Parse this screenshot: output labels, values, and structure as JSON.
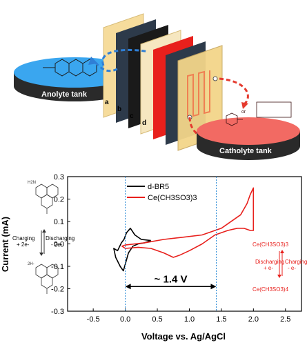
{
  "schematic": {
    "anolyte_tank": "Anolyte tank",
    "catholyte_tank": "Catholyte tank",
    "layer_letters": [
      "a",
      "b",
      "c",
      "d"
    ],
    "or_label": "or",
    "colors": {
      "anolyte": "#3aa6ef",
      "catholyte": "#f26a63",
      "flow_blue": "#2f7fd6",
      "flow_red": "#e53a2e",
      "plate": "#f6dc9c"
    }
  },
  "molecule_labels": {
    "top_nh2": "H2N",
    "bottom_nh2": "2H-",
    "charging": "Charging",
    "charging_e": "+ 2e-",
    "discharging": "Discharging",
    "discharging_e": "- 2e-",
    "ce_top": "Ce(CH3SO3)3",
    "ce_bottom": "Ce(CH3SO3)4",
    "ce_discharging": "Discharging",
    "ce_discharging_e": "+ e-",
    "ce_charging": "Charging",
    "ce_charging_e": "- e-"
  },
  "chart_data": {
    "type": "line",
    "xlabel": "Voltage vs. Ag/AgCl",
    "ylabel": "Current (mA)",
    "xlim": [
      -0.9,
      2.75
    ],
    "ylim": [
      -0.3,
      0.3
    ],
    "xticks": [
      -0.5,
      0.0,
      0.5,
      1.0,
      1.5,
      2.0,
      2.5
    ],
    "yticks": [
      -0.3,
      -0.2,
      -0.1,
      0.0,
      0.1,
      0.2,
      0.3
    ],
    "annotation": "~ 1.4 V",
    "markers": [
      0.0,
      1.42
    ],
    "legend_position": "top-center",
    "series": [
      {
        "name": "d-BR5",
        "color": "#000000",
        "x": [
          0.4,
          0.25,
          0.15,
          0.08,
          0.02,
          -0.02,
          -0.06,
          -0.12,
          -0.18,
          -0.15,
          -0.08,
          -0.03,
          0.0,
          0.05,
          0.12,
          0.2,
          0.3,
          0.4
        ],
        "y": [
          0.015,
          0.02,
          0.04,
          0.07,
          0.05,
          0.02,
          0.005,
          -0.03,
          -0.02,
          -0.06,
          -0.1,
          -0.12,
          -0.09,
          -0.04,
          -0.01,
          0.0,
          0.005,
          0.015
        ]
      },
      {
        "name": "Ce(CH3SO3)3",
        "color": "#e8201c",
        "x": [
          0.0,
          0.3,
          0.6,
          0.9,
          1.2,
          1.5,
          1.8,
          1.9,
          1.95,
          2.0,
          2.0,
          1.95,
          1.85,
          1.75,
          1.6,
          1.4,
          1.2,
          1.0,
          0.85,
          0.75,
          0.6,
          0.4,
          0.2,
          0.0,
          -0.05,
          0.0
        ],
        "y": [
          -0.005,
          0.005,
          0.02,
          0.03,
          0.04,
          0.07,
          0.13,
          0.18,
          0.22,
          0.25,
          0.06,
          0.06,
          0.07,
          0.07,
          0.06,
          0.04,
          0.0,
          -0.03,
          -0.05,
          -0.06,
          -0.04,
          -0.02,
          -0.015,
          -0.02,
          -0.01,
          -0.005
        ]
      }
    ]
  }
}
